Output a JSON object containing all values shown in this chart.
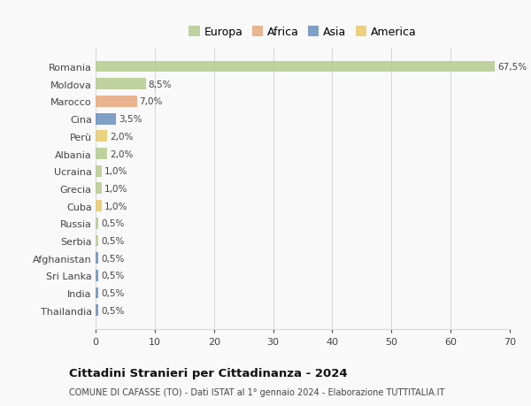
{
  "countries": [
    "Romania",
    "Moldova",
    "Marocco",
    "Cina",
    "Perù",
    "Albania",
    "Ucraina",
    "Grecia",
    "Cuba",
    "Russia",
    "Serbia",
    "Afghanistan",
    "Sri Lanka",
    "India",
    "Thailandia"
  ],
  "values": [
    67.5,
    8.5,
    7.0,
    3.5,
    2.0,
    2.0,
    1.0,
    1.0,
    1.0,
    0.5,
    0.5,
    0.5,
    0.5,
    0.5,
    0.5
  ],
  "labels": [
    "67,5%",
    "8,5%",
    "7,0%",
    "3,5%",
    "2,0%",
    "2,0%",
    "1,0%",
    "1,0%",
    "1,0%",
    "0,5%",
    "0,5%",
    "0,5%",
    "0,5%",
    "0,5%",
    "0,5%"
  ],
  "colors": [
    "#b5cc8e",
    "#b5cc8e",
    "#e8a87c",
    "#6a8fbf",
    "#e8c96b",
    "#b5cc8e",
    "#b5cc8e",
    "#b5cc8e",
    "#e8c96b",
    "#b5cc8e",
    "#b5cc8e",
    "#6a8fbf",
    "#6a8fbf",
    "#6a8fbf",
    "#6a8fbf"
  ],
  "legend_labels": [
    "Europa",
    "Africa",
    "Asia",
    "America"
  ],
  "legend_colors": [
    "#b5cc8e",
    "#e8a87c",
    "#6a8fbf",
    "#e8c96b"
  ],
  "title": "Cittadini Stranieri per Cittadinanza - 2024",
  "subtitle": "COMUNE DI CAFASSE (TO) - Dati ISTAT al 1° gennaio 2024 - Elaborazione TUTTITALIA.IT",
  "xlim": [
    0,
    70
  ],
  "xticks": [
    0,
    10,
    20,
    30,
    40,
    50,
    60,
    70
  ],
  "background_color": "#f9f9f9",
  "grid_color": "#d8d8d8",
  "bar_height": 0.65
}
